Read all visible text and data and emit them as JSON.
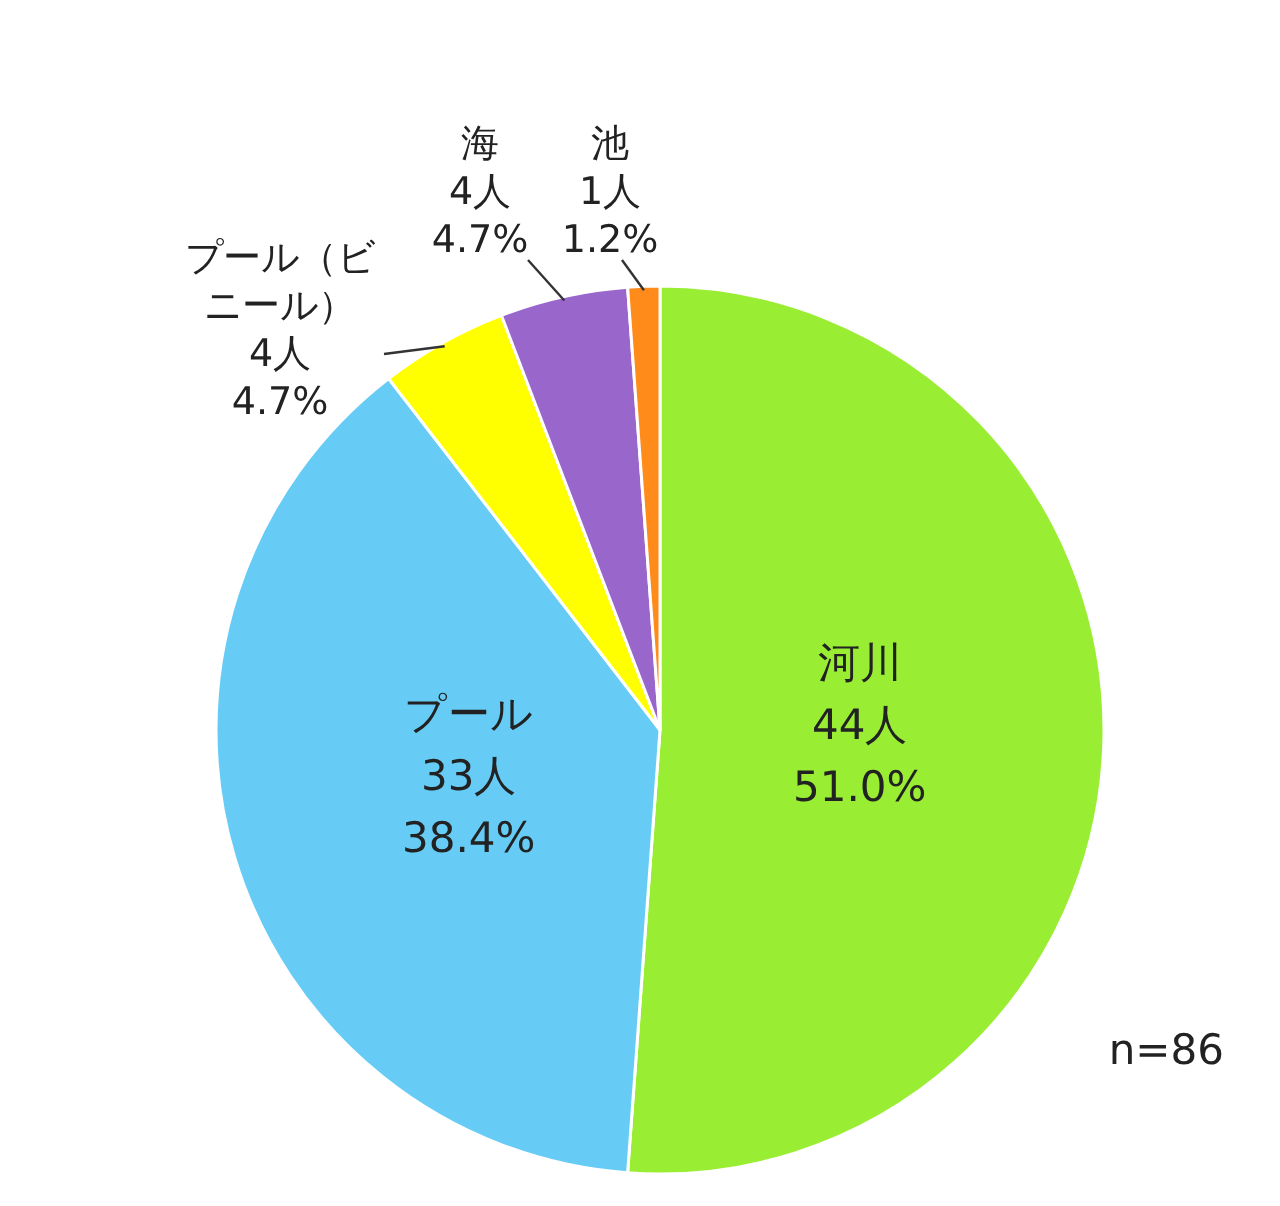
{
  "chart_data": {
    "type": "pie",
    "categories": [
      "河川",
      "プール",
      "プール（ビニール）",
      "海",
      "池"
    ],
    "values": [
      44,
      33,
      4,
      4,
      1
    ],
    "value_labels": [
      "44人\n51.0%",
      "33人\n38.4%",
      "4人\n4.7%",
      "4人\n4.7%",
      "1人\n1.2%"
    ],
    "colors": [
      "#99ee33",
      "#66ccf5",
      "#ffff00",
      "#9966cc",
      "#ff8c1a"
    ],
    "annotations": [
      "n=86"
    ]
  }
}
